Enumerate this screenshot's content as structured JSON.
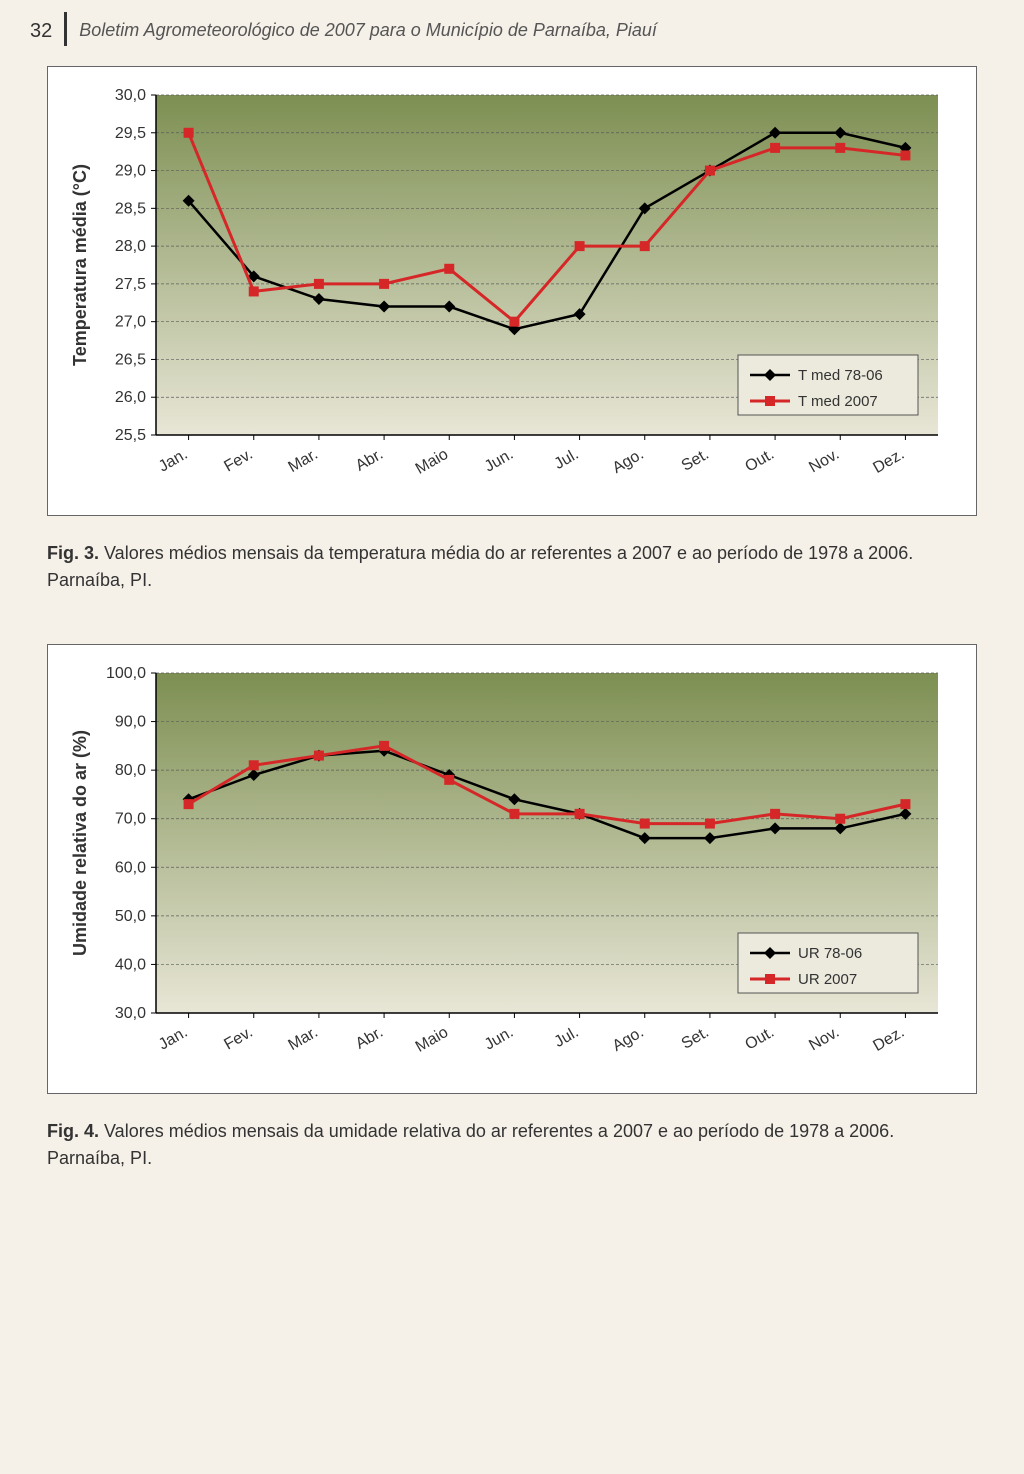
{
  "header": {
    "page_number": "32",
    "title": "Boletim Agrometeorológico de 2007 para o Município de Parnaíba, Piauí"
  },
  "fig3": {
    "type": "line",
    "y_label": "Temperatura média (°C)",
    "label_fontsize": 18,
    "ylim": [
      25.5,
      30.0
    ],
    "ytick_step": 0.5,
    "y_ticks": [
      "30,0",
      "29,5",
      "29,0",
      "28,5",
      "28,0",
      "27,5",
      "27,0",
      "26,5",
      "26,0",
      "25,5"
    ],
    "categories": [
      "Jan.",
      "Fev.",
      "Mar.",
      "Abr.",
      "Maio",
      "Jun.",
      "Jul.",
      "Ago.",
      "Set.",
      "Out.",
      "Nov.",
      "Dez."
    ],
    "series": [
      {
        "name": "T med 78-06",
        "label": "T med 78-06",
        "color": "#000000",
        "marker": "diamond",
        "marker_color": "#000000",
        "line_width": 2.5,
        "values": [
          28.6,
          27.6,
          27.3,
          27.2,
          27.2,
          26.9,
          27.1,
          28.5,
          29.0,
          29.5,
          29.5,
          29.3
        ]
      },
      {
        "name": "T med 2007",
        "label": "T med 2007",
        "color": "#d62728",
        "marker": "square",
        "marker_color": "#d62728",
        "line_width": 3,
        "values": [
          29.5,
          27.4,
          27.5,
          27.5,
          27.7,
          27.0,
          28.0,
          28.0,
          29.0,
          29.3,
          29.3,
          29.2
        ]
      }
    ],
    "legend": {
      "position": "bottom-right-inside",
      "border_color": "#555555",
      "background": "#eceadd"
    },
    "plot_background_top": "#7d8f52",
    "plot_background_bottom": "#e8e6d6",
    "grid_color": "#5c5c5c",
    "grid_dash": "3,2",
    "axis_color": "#000000",
    "tick_fontsize": 16,
    "x_tick_rotation": 30
  },
  "caption3": {
    "label": "Fig. 3.",
    "text": " Valores médios mensais da temperatura média do ar referentes a 2007 e ao período de 1978 a 2006. Parnaíba, PI."
  },
  "fig4": {
    "type": "line",
    "y_label": "Umidade relativa do ar (%)",
    "label_fontsize": 18,
    "ylim": [
      30.0,
      100.0
    ],
    "ytick_step": 10.0,
    "y_ticks": [
      "100,0",
      "90,0",
      "80,0",
      "70,0",
      "60,0",
      "50,0",
      "40,0",
      "30,0"
    ],
    "categories": [
      "Jan.",
      "Fev.",
      "Mar.",
      "Abr.",
      "Maio",
      "Jun.",
      "Jul.",
      "Ago.",
      "Set.",
      "Out.",
      "Nov.",
      "Dez."
    ],
    "series": [
      {
        "name": "UR 78-06",
        "label": "UR 78-06",
        "color": "#000000",
        "marker": "diamond",
        "marker_color": "#000000",
        "line_width": 2.5,
        "values": [
          74,
          79,
          83,
          84,
          79,
          74,
          71,
          66,
          66,
          68,
          68,
          71
        ]
      },
      {
        "name": "UR 2007",
        "label": "UR 2007",
        "color": "#d62728",
        "marker": "square",
        "marker_color": "#d62728",
        "line_width": 3,
        "values": [
          73,
          81,
          83,
          85,
          78,
          71,
          71,
          69,
          69,
          71,
          70,
          73
        ]
      }
    ],
    "legend": {
      "position": "bottom-right-inside",
      "border_color": "#555555",
      "background": "#eceadd"
    },
    "plot_background_top": "#7d8f52",
    "plot_background_bottom": "#e8e6d6",
    "grid_color": "#5c5c5c",
    "grid_dash": "3,2",
    "axis_color": "#000000",
    "tick_fontsize": 16,
    "x_tick_rotation": 30
  },
  "caption4": {
    "label": "Fig. 4.",
    "text": " Valores médios mensais da umidade relativa do ar referentes a 2007 e ao período de 1978 a 2006. Parnaíba, PI."
  }
}
